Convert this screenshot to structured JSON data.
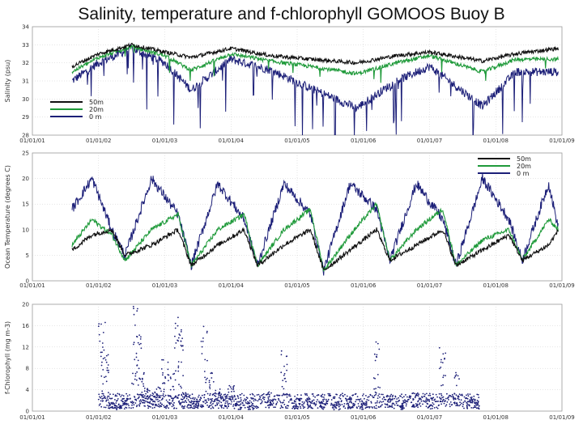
{
  "title": "Salinity, temperature and f-chlorophyll GOMOOS Buoy B",
  "colors": {
    "m50": "#111111",
    "m20": "#1f9a3a",
    "m0": "#1c1f78"
  },
  "chart_data": [
    {
      "type": "line",
      "ylabel": "Salinity (psu)",
      "ylim": [
        28,
        34
      ],
      "yticks": [
        "28",
        "29",
        "30",
        "31",
        "32",
        "33",
        "34"
      ],
      "xticks": [
        "01/01/01",
        "01/01/02",
        "01/01/03",
        "01/01/04",
        "01/01/05",
        "01/01/06",
        "01/01/07",
        "01/01/08",
        "01/01/09"
      ],
      "xlim": [
        2001.0,
        2009.0
      ],
      "legend": [
        "50m",
        "20m",
        "0 m"
      ],
      "series": [
        {
          "name": "50m",
          "x": [
            2001.6,
            2002.0,
            2002.5,
            2003.0,
            2003.4,
            2004.0,
            2004.6,
            2005.2,
            2005.9,
            2006.5,
            2007.0,
            2007.8,
            2008.3,
            2008.95
          ],
          "values": [
            31.8,
            32.5,
            33.0,
            32.6,
            32.3,
            32.8,
            32.4,
            32.2,
            32.0,
            32.4,
            32.6,
            32.1,
            32.5,
            32.8
          ]
        },
        {
          "name": "20m",
          "x": [
            2001.6,
            2002.0,
            2002.5,
            2003.0,
            2003.4,
            2004.0,
            2004.6,
            2005.2,
            2005.9,
            2006.5,
            2007.0,
            2007.8,
            2008.3,
            2008.95
          ],
          "values": [
            31.5,
            32.3,
            32.9,
            32.4,
            31.6,
            32.5,
            32.1,
            31.8,
            31.4,
            32.0,
            32.4,
            31.5,
            32.2,
            32.2
          ]
        },
        {
          "name": "0 m",
          "x": [
            2001.6,
            2002.0,
            2002.5,
            2003.0,
            2003.4,
            2004.0,
            2004.6,
            2005.2,
            2005.9,
            2006.5,
            2007.0,
            2007.8,
            2008.3,
            2008.95
          ],
          "values": [
            31.0,
            32.0,
            32.8,
            32.0,
            30.5,
            32.2,
            31.6,
            30.6,
            29.5,
            31.0,
            31.8,
            29.6,
            31.5,
            31.5
          ]
        }
      ]
    },
    {
      "type": "line",
      "ylabel": "Ocean Temperature (degrees C)",
      "ylim": [
        0,
        25
      ],
      "yticks": [
        "0",
        "5",
        "10",
        "15",
        "20",
        "25"
      ],
      "xticks": [
        "01/01/01",
        "01/01/02",
        "01/01/03",
        "01/01/04",
        "01/01/05",
        "01/01/06",
        "01/01/07",
        "01/01/08",
        "01/01/09"
      ],
      "xlim": [
        2001.0,
        2009.0
      ],
      "legend": [
        "50m",
        "20m",
        "0 m"
      ],
      "series": [
        {
          "name": "50m",
          "x": [
            2001.6,
            2001.9,
            2002.2,
            2002.4,
            2002.8,
            2003.2,
            2003.4,
            2003.8,
            2004.2,
            2004.4,
            2004.8,
            2005.2,
            2005.4,
            2005.8,
            2006.2,
            2006.4,
            2006.8,
            2007.2,
            2007.4,
            2007.8,
            2008.2,
            2008.4,
            2008.8,
            2008.95
          ],
          "values": [
            6,
            9,
            10,
            5,
            7,
            10,
            3,
            7,
            10,
            3,
            7,
            10,
            2,
            6,
            10,
            4,
            7,
            10,
            3,
            6,
            9,
            4,
            7,
            10
          ]
        },
        {
          "name": "20m",
          "x": [
            2001.6,
            2001.9,
            2002.2,
            2002.4,
            2002.8,
            2003.2,
            2003.4,
            2003.8,
            2004.2,
            2004.4,
            2004.8,
            2005.2,
            2005.4,
            2005.8,
            2006.2,
            2006.4,
            2006.8,
            2007.2,
            2007.4,
            2007.8,
            2008.2,
            2008.4,
            2008.8,
            2008.95
          ],
          "values": [
            7,
            12,
            9,
            4,
            10,
            13,
            3,
            10,
            13,
            3,
            10,
            14,
            2,
            9,
            15,
            4,
            10,
            14,
            3,
            8,
            10,
            4,
            12,
            10
          ]
        },
        {
          "name": "0 m",
          "x": [
            2001.6,
            2001.9,
            2002.2,
            2002.4,
            2002.8,
            2003.2,
            2003.4,
            2003.8,
            2004.2,
            2004.4,
            2004.8,
            2005.2,
            2005.4,
            2005.8,
            2006.2,
            2006.4,
            2006.8,
            2007.2,
            2007.4,
            2007.8,
            2008.2,
            2008.4,
            2008.8,
            2008.95
          ],
          "values": [
            14,
            20,
            10,
            5,
            20,
            13,
            3,
            19,
            12,
            3,
            19,
            13,
            2,
            19,
            14,
            4,
            19,
            12,
            3,
            20,
            12,
            4,
            19,
            10
          ]
        }
      ]
    },
    {
      "type": "scatter",
      "ylabel": "f-Chlorophyll (mg m-3)",
      "ylim": [
        0,
        20
      ],
      "yticks": [
        "0",
        "4",
        "8",
        "12",
        "16",
        "20"
      ],
      "xticks": [
        "01/01/01",
        "01/01/02",
        "01/01/03",
        "01/01/04",
        "01/01/05",
        "01/01/06",
        "01/01/07",
        "01/01/08",
        "01/01/09"
      ],
      "xlim": [
        2001.0,
        2009.0
      ],
      "series": [
        {
          "name": "f-Chlorophyll",
          "x": [
            2002.05,
            2002.1,
            2002.2,
            2002.3,
            2002.4,
            2002.55,
            2002.6,
            2002.65,
            2002.7,
            2002.8,
            2002.9,
            2003.0,
            2003.1,
            2003.2,
            2003.25,
            2003.3,
            2003.4,
            2003.5,
            2003.6,
            2003.7,
            2003.8,
            2003.9,
            2004.0,
            2004.1,
            2004.3,
            2004.6,
            2004.8,
            2005.0,
            2005.2,
            2005.4,
            2005.6,
            2005.8,
            2006.0,
            2006.2,
            2006.4,
            2006.6,
            2006.8,
            2007.0,
            2007.2,
            2007.4,
            2007.6,
            2007.7
          ],
          "values": [
            14,
            10,
            1.5,
            1,
            2,
            19,
            12,
            6,
            4,
            3.5,
            3.8,
            10,
            6,
            19,
            12,
            3,
            2,
            1.5,
            14,
            6,
            3.5,
            2.5,
            4,
            1.5,
            1.5,
            3,
            10,
            2,
            2,
            1.5,
            1.2,
            2,
            1.5,
            11,
            2,
            1.5,
            3,
            2,
            10,
            6,
            2,
            2
          ]
        }
      ]
    }
  ]
}
